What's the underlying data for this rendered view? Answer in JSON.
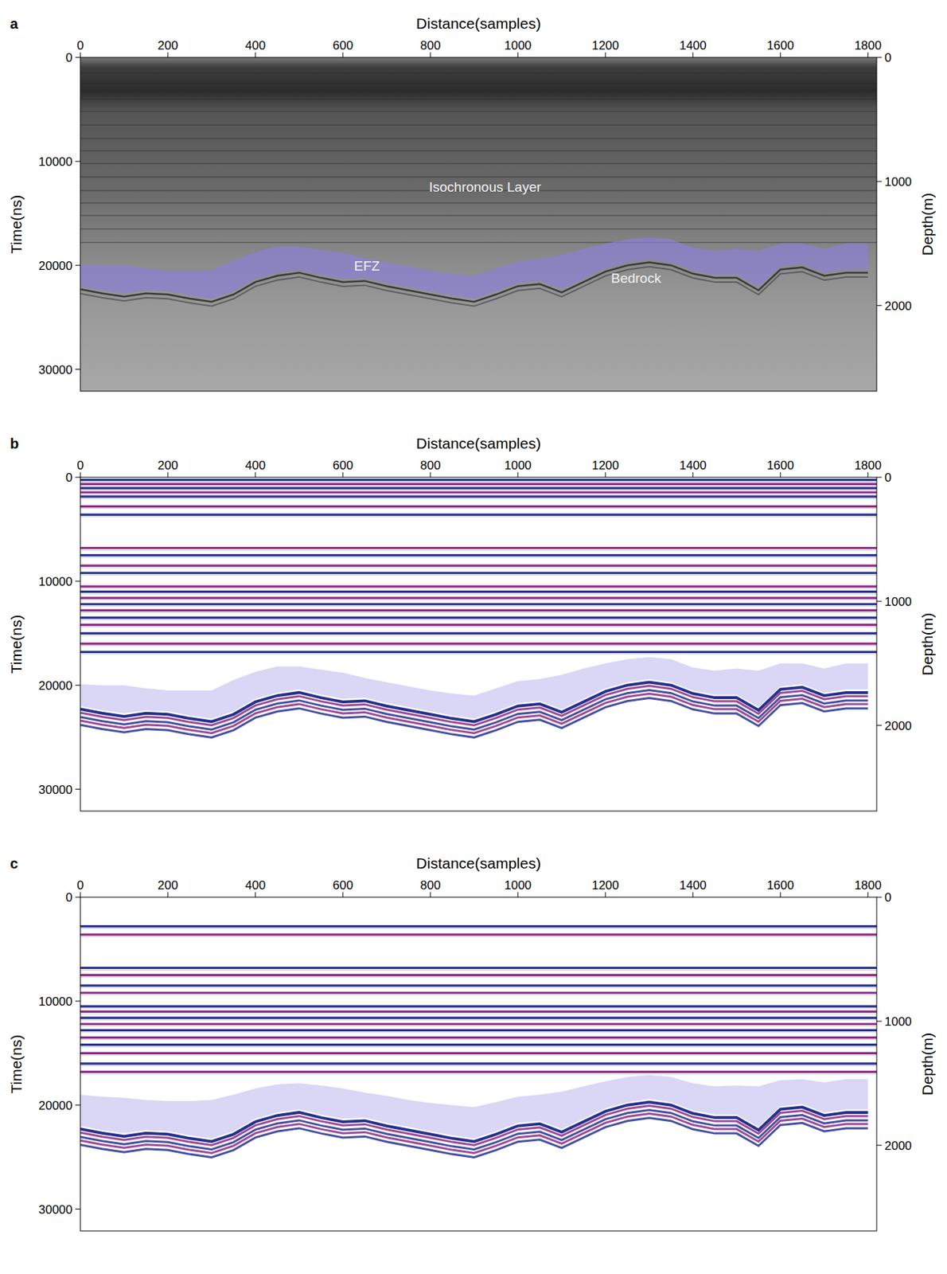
{
  "chart_data": [
    {
      "type": "radargram",
      "panel_label": "a",
      "x_label": "Distance(samples)",
      "y_label": "Time(ns)",
      "y2_label": "Depth(m)",
      "xlim": [
        0,
        1820
      ],
      "xticks": [
        0,
        200,
        400,
        600,
        800,
        1000,
        1200,
        1400,
        1600,
        1800
      ],
      "ylim": [
        0,
        32100
      ],
      "yticks": [
        0,
        10000,
        20000,
        30000
      ],
      "y2lim": [
        0,
        2690
      ],
      "y2ticks": [
        0,
        1000,
        2000
      ],
      "x": [
        0,
        50,
        100,
        150,
        200,
        250,
        300,
        350,
        400,
        450,
        500,
        550,
        600,
        650,
        700,
        750,
        800,
        850,
        900,
        950,
        1000,
        1050,
        1100,
        1150,
        1200,
        1250,
        1300,
        1350,
        1400,
        1450,
        1500,
        1550,
        1600,
        1650,
        1700,
        1750,
        1800
      ],
      "layers": [
        1500,
        2500,
        3200,
        4000,
        5200,
        6500,
        7800,
        9000,
        10200,
        11500,
        12800,
        14000,
        15200,
        16500,
        17800
      ],
      "color": "#2b2b2b",
      "efz": {
        "color": "#8a80d6",
        "top": [
          19900,
          20000,
          20000,
          20300,
          20500,
          20500,
          20500,
          19500,
          18700,
          18200,
          18200,
          18500,
          18800,
          19300,
          19700,
          20100,
          20500,
          20800,
          21000,
          20300,
          19600,
          19400,
          19000,
          18400,
          17900,
          17500,
          17300,
          17500,
          18300,
          18600,
          18400,
          18600,
          17900,
          17900,
          18400,
          17900,
          17900
        ],
        "bottom": [
          22000,
          22400,
          22700,
          22400,
          22500,
          22900,
          23200,
          22500,
          21300,
          20700,
          20400,
          20900,
          21300,
          21200,
          21700,
          22100,
          22500,
          22900,
          23200,
          22500,
          21700,
          21500,
          22300,
          21300,
          20300,
          19700,
          19400,
          19700,
          20500,
          20900,
          20900,
          22100,
          20100,
          19900,
          20700,
          20400,
          20400
        ]
      },
      "bedrock": {
        "color": "#3a3a3a",
        "values": [
          22300,
          22700,
          23000,
          22700,
          22800,
          23200,
          23500,
          22800,
          21600,
          21000,
          20700,
          21200,
          21600,
          21500,
          22000,
          22400,
          22800,
          23200,
          23500,
          22800,
          22000,
          21800,
          22600,
          21600,
          20600,
          20000,
          19700,
          20000,
          20800,
          21200,
          21200,
          22400,
          20400,
          20200,
          21000,
          20700,
          20700
        ]
      },
      "annotations": [
        {
          "text": "Isochronous Layer",
          "x": 925,
          "y": 12400
        },
        {
          "text": "EFZ",
          "x": 655,
          "y": 20000
        },
        {
          "text": "Bedrock",
          "x": 1270,
          "y": 21200
        }
      ]
    },
    {
      "type": "radargram",
      "panel_label": "b",
      "x_label": "Distance(samples)",
      "y_label": "Time(ns)",
      "y2_label": "Depth(m)",
      "xlim": [
        0,
        1820
      ],
      "xticks": [
        0,
        200,
        400,
        600,
        800,
        1000,
        1200,
        1400,
        1600,
        1800
      ],
      "ylim": [
        0,
        32100
      ],
      "yticks": [
        0,
        10000,
        20000,
        30000
      ],
      "y2lim": [
        0,
        2690
      ],
      "y2ticks": [
        0,
        1000,
        2000
      ],
      "x": [
        0,
        50,
        100,
        150,
        200,
        250,
        300,
        350,
        400,
        450,
        500,
        550,
        600,
        650,
        700,
        750,
        800,
        850,
        900,
        950,
        1000,
        1050,
        1100,
        1150,
        1200,
        1250,
        1300,
        1350,
        1400,
        1450,
        1500,
        1550,
        1600,
        1650,
        1700,
        1750,
        1800
      ],
      "layers": [
        250,
        650,
        1050,
        1450,
        1850,
        2800,
        3600,
        6800,
        7500,
        8500,
        9200,
        10500,
        11000,
        11600,
        12200,
        12800,
        13500,
        14200,
        15000,
        16000,
        16800
      ],
      "colors": [
        "#26318f",
        "#8e2a86"
      ],
      "efz": {
        "color": "#c9c4f2",
        "top": [
          19900,
          20000,
          20000,
          20300,
          20500,
          20500,
          20500,
          19500,
          18700,
          18200,
          18200,
          18500,
          18800,
          19300,
          19700,
          20100,
          20500,
          20800,
          21000,
          20300,
          19600,
          19400,
          19000,
          18400,
          17900,
          17500,
          17300,
          17500,
          18300,
          18600,
          18400,
          18600,
          17900,
          17900,
          18400,
          17900,
          17900
        ],
        "bottom": [
          22000,
          22400,
          22700,
          22400,
          22500,
          22900,
          23200,
          22500,
          21300,
          20700,
          20400,
          20900,
          21300,
          21200,
          21700,
          22100,
          22500,
          22900,
          23200,
          22500,
          21700,
          21500,
          22300,
          21300,
          20300,
          19700,
          19400,
          19700,
          20500,
          20900,
          20900,
          22100,
          20100,
          19900,
          20700,
          20400,
          20400
        ]
      },
      "bedrock": {
        "values": [
          22300,
          22700,
          23000,
          22700,
          22800,
          23200,
          23500,
          22800,
          21600,
          21000,
          20700,
          21200,
          21600,
          21500,
          22000,
          22400,
          22800,
          23200,
          23500,
          22800,
          22000,
          21800,
          22600,
          21600,
          20600,
          20000,
          19700,
          20000,
          20800,
          21200,
          21200,
          22400,
          20400,
          20200,
          21000,
          20700,
          20700
        ]
      }
    },
    {
      "type": "radargram",
      "panel_label": "c",
      "x_label": "Distance(samples)",
      "y_label": "Time(ns)",
      "y2_label": "Depth(m)",
      "xlim": [
        0,
        1820
      ],
      "xticks": [
        0,
        200,
        400,
        600,
        800,
        1000,
        1200,
        1400,
        1600,
        1800
      ],
      "ylim": [
        0,
        32100
      ],
      "yticks": [
        0,
        10000,
        20000,
        30000
      ],
      "y2lim": [
        0,
        2690
      ],
      "y2ticks": [
        0,
        1000,
        2000
      ],
      "x": [
        0,
        50,
        100,
        150,
        200,
        250,
        300,
        350,
        400,
        450,
        500,
        550,
        600,
        650,
        700,
        750,
        800,
        850,
        900,
        950,
        1000,
        1050,
        1100,
        1150,
        1200,
        1250,
        1300,
        1350,
        1400,
        1450,
        1500,
        1550,
        1600,
        1650,
        1700,
        1750,
        1800
      ],
      "layers": [
        2800,
        3600,
        6800,
        7500,
        8500,
        9200,
        10500,
        11000,
        11600,
        12200,
        12800,
        13500,
        14200,
        15000,
        16000,
        16800
      ],
      "colors": [
        "#26318f",
        "#8e2a86"
      ],
      "efz": {
        "color": "#c9c4f2",
        "top": [
          19000,
          19200,
          19300,
          19500,
          19600,
          19600,
          19500,
          19000,
          18400,
          18000,
          17900,
          18100,
          18400,
          18800,
          19100,
          19500,
          19800,
          20000,
          20200,
          19700,
          19200,
          19000,
          18700,
          18200,
          17700,
          17300,
          17100,
          17300,
          17900,
          18200,
          18100,
          18200,
          17600,
          17500,
          17800,
          17500,
          17500
        ],
        "bottom": [
          22000,
          22400,
          22700,
          22400,
          22500,
          22900,
          23200,
          22500,
          21300,
          20700,
          20400,
          20900,
          21300,
          21200,
          21700,
          22100,
          22500,
          22900,
          23200,
          22500,
          21700,
          21500,
          22300,
          21300,
          20300,
          19700,
          19400,
          19700,
          20500,
          20900,
          20900,
          22100,
          20100,
          19900,
          20700,
          20400,
          20400
        ]
      },
      "bedrock": {
        "values": [
          22300,
          22700,
          23000,
          22700,
          22800,
          23200,
          23500,
          22800,
          21600,
          21000,
          20700,
          21200,
          21600,
          21500,
          22000,
          22400,
          22800,
          23200,
          23500,
          22800,
          22000,
          21800,
          22600,
          21600,
          20600,
          20000,
          19700,
          20000,
          20800,
          21200,
          21200,
          22400,
          20400,
          20200,
          21000,
          20700,
          20700
        ]
      }
    }
  ]
}
